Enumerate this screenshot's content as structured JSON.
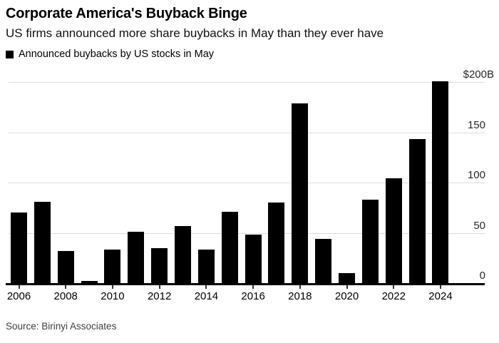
{
  "header": {
    "title": "Corporate America's Buyback Binge",
    "subtitle": "US firms announced more share buybacks in May than they ever have"
  },
  "legend": {
    "label": "Announced buybacks by US stocks in May",
    "swatch_color": "#000000"
  },
  "source": "Source: Birinyi Associates",
  "colors": {
    "bar": "#000000",
    "grid": "#dcdcdc",
    "axis": "#000000",
    "text": "#000000",
    "source_text": "#3f3f3f"
  },
  "chart_data": {
    "type": "bar",
    "title": "Corporate America's Buyback Binge",
    "subtitle": "US firms announced more share buybacks in May than they ever have",
    "series_name": "Announced buybacks by US stocks in May",
    "unit": "USD billions",
    "categories": [
      2006,
      2007,
      2008,
      2009,
      2010,
      2011,
      2012,
      2013,
      2014,
      2015,
      2016,
      2017,
      2018,
      2019,
      2020,
      2021,
      2022,
      2023,
      2024
    ],
    "values": [
      70,
      81,
      32,
      2,
      33,
      51,
      35,
      57,
      33,
      71,
      48,
      80,
      179,
      44,
      10,
      83,
      104,
      143,
      201
    ],
    "xlabel": "",
    "ylabel": "",
    "ylim": [
      0,
      205
    ],
    "y_ticks": [
      0,
      50,
      100,
      150,
      200
    ],
    "y_tick_labels": [
      "0",
      "50",
      "100",
      "150",
      "$200B"
    ],
    "x_tick_labels": [
      "2006",
      "2008",
      "2010",
      "2012",
      "2014",
      "2016",
      "2018",
      "2020",
      "2022",
      "2024"
    ],
    "grid": true,
    "y_axis_side": "right",
    "legend_position": "top-left",
    "source": "Source: Birinyi Associates"
  }
}
